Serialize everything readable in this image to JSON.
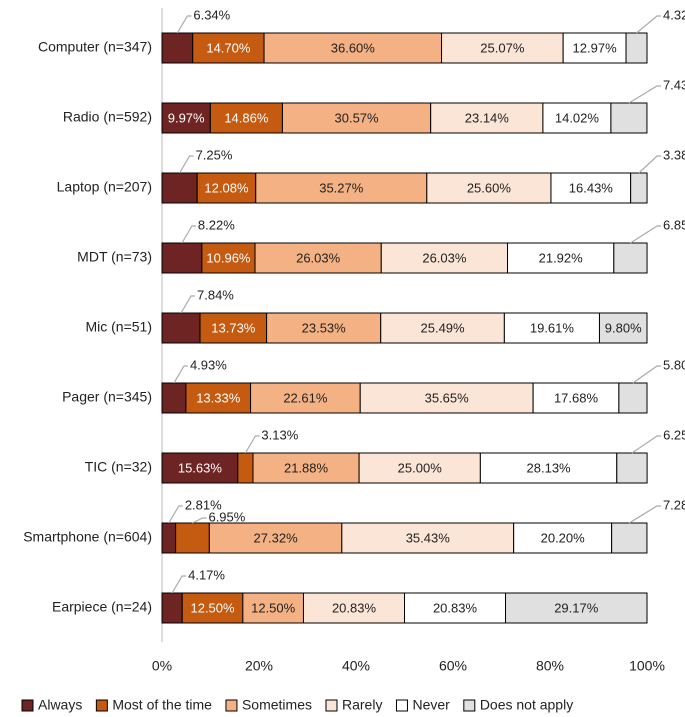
{
  "chart_data": {
    "type": "stacked-bar-horizontal",
    "categories": [
      "Computer (n=347)",
      "Radio (n=592)",
      "Laptop (n=207)",
      "MDT (n=73)",
      "Mic (n=51)",
      "Pager (n=345)",
      "TIC (n=32)",
      "Smartphone (n=604)",
      "Earpiece (n=24)"
    ],
    "series": [
      {
        "name": "Always",
        "color": "#6e2423",
        "values": [
          6.34,
          9.97,
          7.25,
          8.22,
          7.84,
          4.93,
          15.63,
          2.81,
          4.17
        ],
        "value_labels": [
          "6.34%",
          "9.97%",
          "7.25%",
          "8.22%",
          "7.84%",
          "4.93%",
          "15.63%",
          "2.81%",
          "4.17%"
        ]
      },
      {
        "name": "Most of the time",
        "color": "#c55a11",
        "values": [
          14.7,
          14.86,
          12.08,
          10.96,
          13.73,
          13.33,
          3.13,
          6.95,
          12.5
        ],
        "value_labels": [
          "14.70%",
          "14.86%",
          "12.08%",
          "10.96%",
          "13.73%",
          "13.33%",
          "3.13%",
          "6.95%",
          "12.50%"
        ]
      },
      {
        "name": "Sometimes",
        "color": "#f4b183",
        "values": [
          36.6,
          30.57,
          35.27,
          26.03,
          23.53,
          22.61,
          21.88,
          27.32,
          12.5
        ],
        "value_labels": [
          "36.60%",
          "30.57%",
          "35.27%",
          "26.03%",
          "23.53%",
          "22.61%",
          "21.88%",
          "27.32%",
          "12.50%"
        ]
      },
      {
        "name": "Rarely",
        "color": "#fbe5d6",
        "values": [
          25.07,
          23.14,
          25.6,
          26.03,
          25.49,
          35.65,
          25.0,
          35.43,
          20.83
        ],
        "value_labels": [
          "25.07%",
          "23.14%",
          "25.60%",
          "26.03%",
          "25.49%",
          "35.65%",
          "25.00%",
          "35.43%",
          "20.83%"
        ]
      },
      {
        "name": "Never",
        "color": "#ffffff",
        "values": [
          12.97,
          14.02,
          16.43,
          21.92,
          19.61,
          17.68,
          28.13,
          20.2,
          20.83
        ],
        "value_labels": [
          "12.97%",
          "14.02%",
          "16.43%",
          "21.92%",
          "19.61%",
          "17.68%",
          "28.13%",
          "20.20%",
          "20.83%"
        ]
      },
      {
        "name": "Does not apply",
        "color": "#e0e0e0",
        "values": [
          4.32,
          7.43,
          3.38,
          6.85,
          9.8,
          5.8,
          6.25,
          7.28,
          29.17
        ],
        "value_labels": [
          "4.32%",
          "7.43%",
          "3.38%",
          "6.85%",
          "9.80%",
          "5.80%",
          "6.25%",
          "7.28%",
          "29.17%"
        ]
      }
    ],
    "xlim": [
      0,
      100
    ],
    "xticks": [
      {
        "value": 0,
        "label": "0%"
      },
      {
        "value": 20,
        "label": "20%"
      },
      {
        "value": 40,
        "label": "40%"
      },
      {
        "value": 60,
        "label": "60%"
      },
      {
        "value": 80,
        "label": "80%"
      },
      {
        "value": 100,
        "label": "100%"
      }
    ],
    "legend": "bottom"
  }
}
